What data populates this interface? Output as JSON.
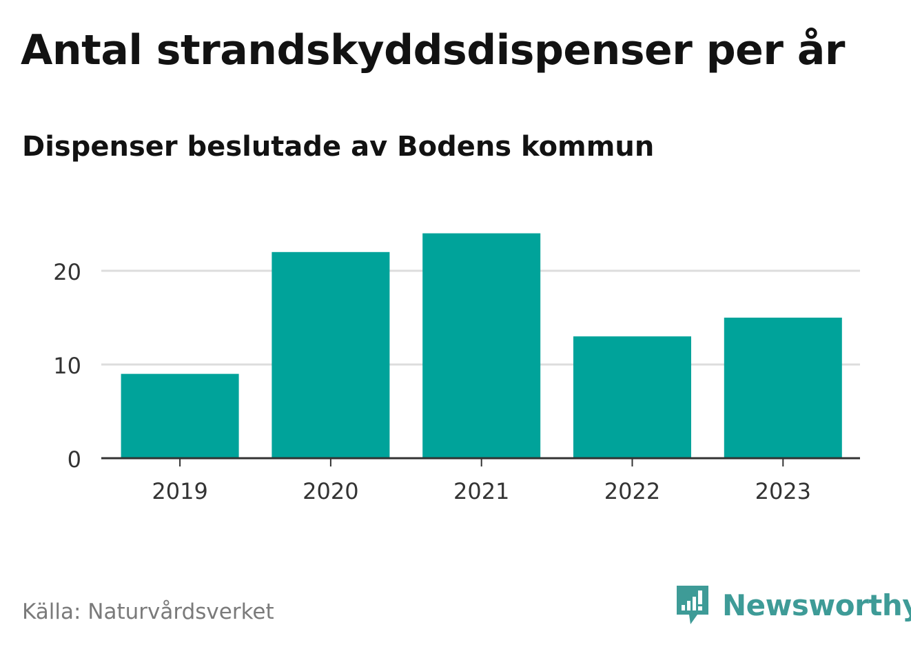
{
  "title": "Antal strandskyddsdispenser per år",
  "subtitle": "Dispenser beslutade av Bodens kommun",
  "source": "Källa: Naturvårdsverket",
  "brand": {
    "name": "Newsworthy",
    "icon": "newsworthy-logo-icon",
    "color": "#3e9b97"
  },
  "colors": {
    "bar": "#00a39a",
    "grid": "#dddddd",
    "axis": "#333333",
    "tick_text": "#333333"
  },
  "chart_data": {
    "type": "bar",
    "title": "Antal strandskyddsdispenser per år",
    "subtitle": "Dispenser beslutade av Bodens kommun",
    "categories": [
      "2019",
      "2020",
      "2021",
      "2022",
      "2023"
    ],
    "values": [
      9,
      22,
      24,
      13,
      15
    ],
    "xlabel": "",
    "ylabel": "",
    "ylim": [
      0,
      24
    ],
    "yticks": [
      0,
      10,
      20
    ],
    "ytick_labels": [
      "0",
      "10",
      "20"
    ],
    "grid": true,
    "legend": "none"
  }
}
